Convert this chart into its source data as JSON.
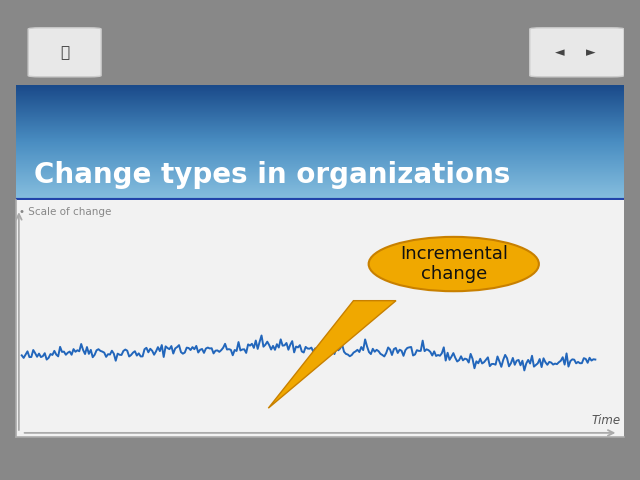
{
  "title": "Change types in organizations",
  "title_fontsize": 20,
  "title_color": "#ffffff",
  "ylabel": "Scale of change",
  "xlabel": "Time",
  "outer_bg": "#888888",
  "nav_bg": "#f5f5f5",
  "header_color_top": "#87bfdf",
  "header_color_mid": "#4a8ec2",
  "header_color_bottom": "#1a4a8a",
  "plot_bg": "#f2f2f2",
  "line_color": "#2266bb",
  "line_width": 1.4,
  "callout_text": "Incremental\nchange",
  "callout_fill": "#f0a800",
  "callout_edge": "#c88000",
  "callout_text_color": "#111111",
  "callout_fontsize": 13,
  "axis_color": "#aaaaaa",
  "label_color": "#888888",
  "time_color": "#555555",
  "seed": 42,
  "n_points": 300,
  "bottom_bar_color": "#c8c8c8"
}
